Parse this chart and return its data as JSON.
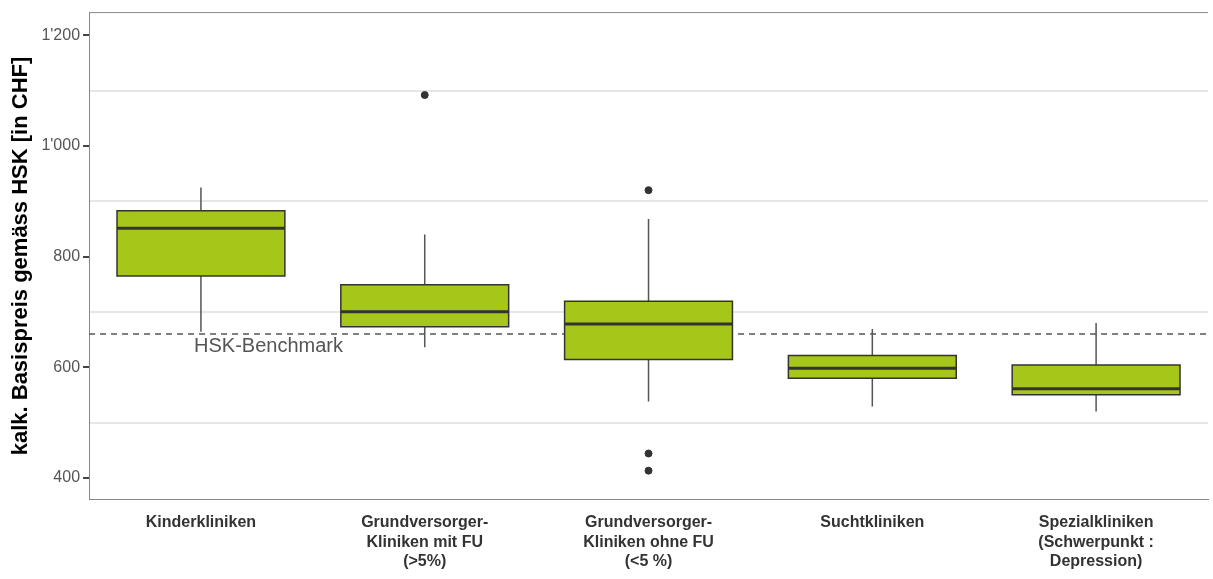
{
  "chart_data": {
    "type": "box",
    "ylabel": "kalk. Basispreis gemäss HSK [in CHF]",
    "categories": [
      "Kinderkliniken",
      "Grundversorger-\nKliniken mit FU\n(>5%)",
      "Grundversorger-\nKliniken ohne FU\n(<5 %)",
      "Suchtkliniken",
      "Spezialkliniken\n(Schwerpunkt :\nDepression)"
    ],
    "color": "#a6c71a",
    "boxes": [
      {
        "low": 664,
        "q1": 765,
        "median": 851,
        "q3": 883,
        "high": 925
      },
      {
        "low": 636,
        "q1": 673,
        "median": 700,
        "q3": 749,
        "high": 840,
        "outliers": [
          1092
        ]
      },
      {
        "low": 538,
        "q1": 614,
        "median": 678,
        "q3": 719,
        "high": 868,
        "outliers": [
          920,
          444,
          413
        ]
      },
      {
        "low": 529,
        "q1": 580,
        "median": 598,
        "q3": 621,
        "high": 669
      },
      {
        "low": 520,
        "q1": 550,
        "median": 561,
        "q3": 604,
        "high": 680
      }
    ],
    "ylim": [
      361,
      1241
    ],
    "yticks": [
      400,
      {
        "value": 500,
        "label": null
      },
      600,
      {
        "value": 700,
        "label": null
      },
      800,
      {
        "value": 900,
        "label": null
      },
      {
        "value": 1000,
        "label": "1'000"
      },
      {
        "value": 1100,
        "label": null
      },
      {
        "value": 1200,
        "label": "1'200"
      }
    ],
    "grid": true,
    "ref_lines": [
      {
        "axis": "y",
        "value": 660,
        "label": "HSK-Benchmark",
        "color": "#555555",
        "line_style": "dashed"
      }
    ]
  }
}
